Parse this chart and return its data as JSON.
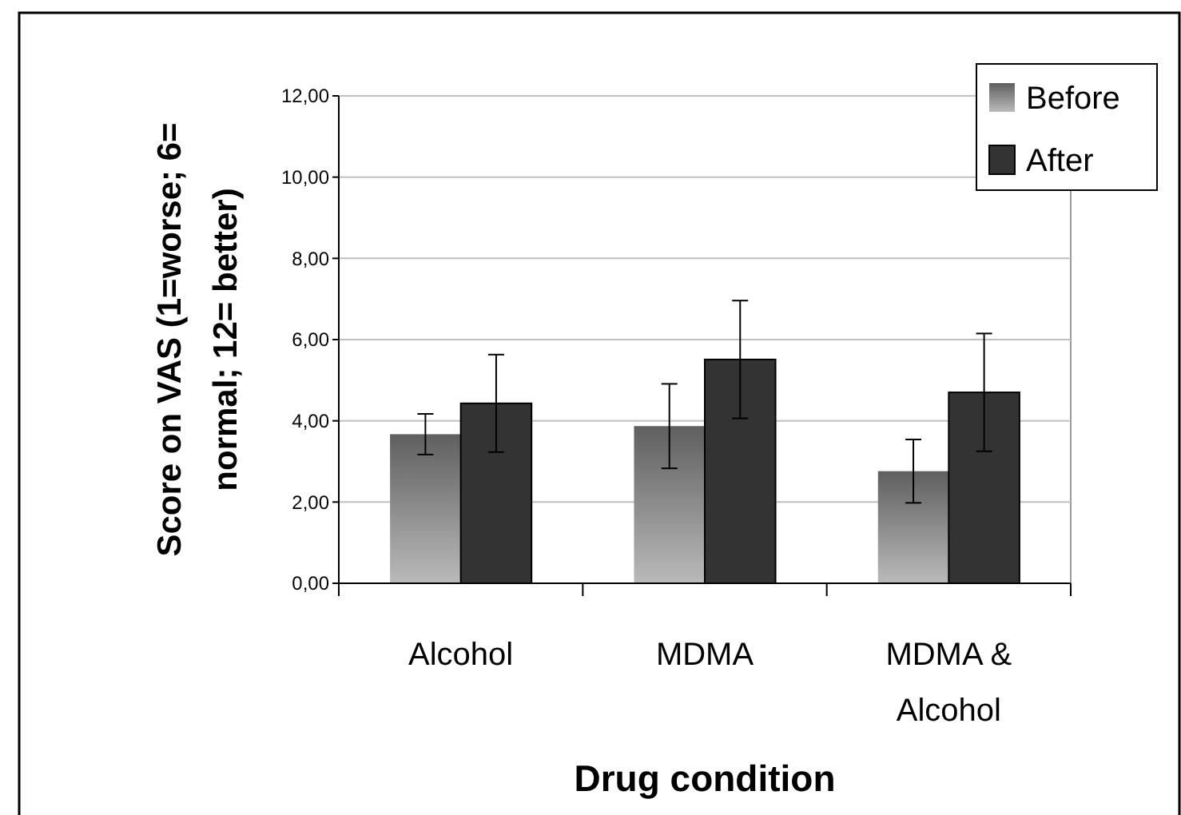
{
  "chart_data": {
    "type": "bar",
    "xlabel": "Drug condition",
    "ylabel": "Score on VAS (1=worse; 6= normal; 12= better)",
    "categories": [
      "Alcohol",
      "MDMA",
      "MDMA & Alcohol"
    ],
    "series": [
      {
        "name": "Before",
        "color": "#8c8c8c",
        "values": [
          3.67,
          3.87,
          2.76
        ],
        "errors": [
          0.5,
          1.04,
          0.78
        ]
      },
      {
        "name": "After",
        "color": "#333333",
        "values": [
          4.43,
          5.51,
          4.7
        ],
        "errors": [
          1.2,
          1.45,
          1.45
        ]
      }
    ],
    "ylim": [
      0,
      12
    ],
    "yticks": [
      {
        "value": 0,
        "label": "0,00"
      },
      {
        "value": 2,
        "label": "2,00"
      },
      {
        "value": 4,
        "label": "4,00"
      },
      {
        "value": 6,
        "label": "6,00"
      },
      {
        "value": 8,
        "label": "8,00"
      },
      {
        "value": 10,
        "label": "10,00"
      },
      {
        "value": 12,
        "label": "12,00"
      }
    ],
    "grid": "y",
    "legend": "top right"
  }
}
